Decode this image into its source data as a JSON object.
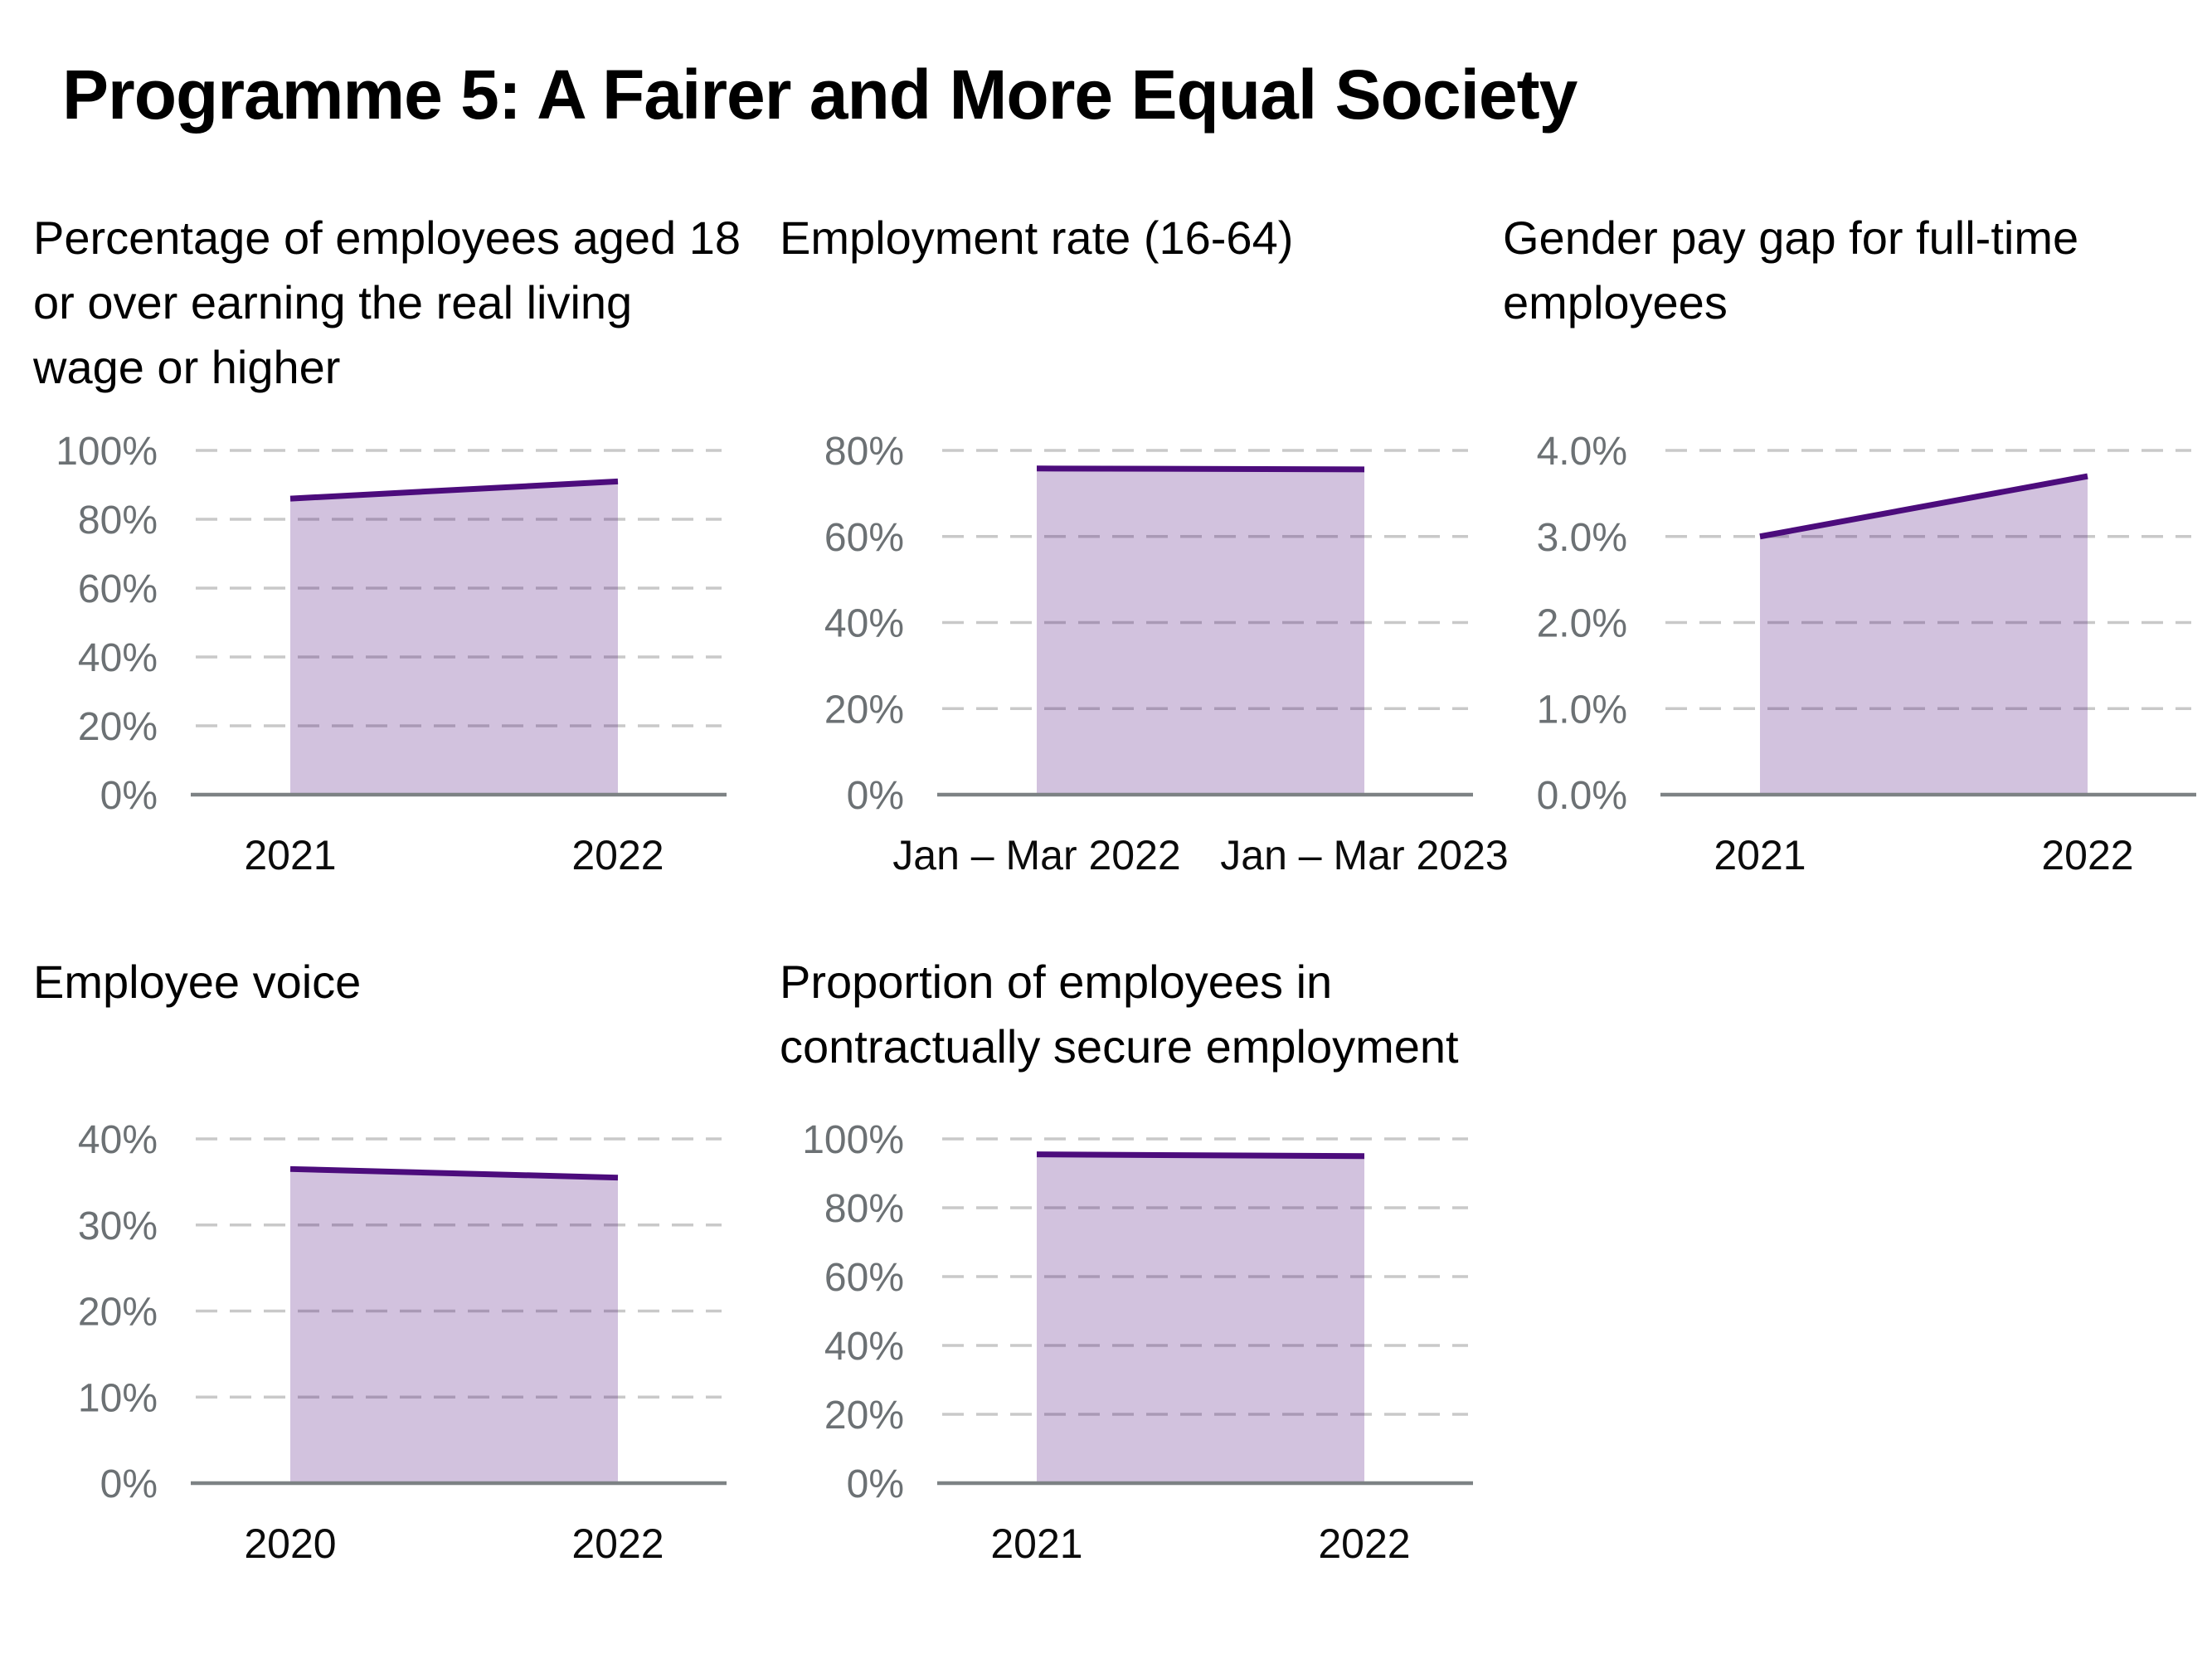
{
  "page": {
    "title": "Programme 5: A Fairer and More Equal Society",
    "background": "#ffffff"
  },
  "colors": {
    "title_text": "#000000",
    "chart_title_text": "#000000",
    "tick_label": "#6c7174",
    "x_label": "#0b0b0b",
    "gridline": "#c9c9c9",
    "baseline": "#7d8284",
    "trend_line": "#4c0c7c",
    "area_fill": "rgba(77,13,125,0.25)"
  },
  "chart_data": [
    {
      "type": "area",
      "title": "Percentage of employees aged 18\nor over earning the real living\nwage or higher",
      "x_labels": [
        "2021",
        "2022"
      ],
      "values": [
        86,
        91
      ],
      "y_max": 100,
      "y_ticks": [
        "100%",
        "80%",
        "60%",
        "40%",
        "20%",
        "0%"
      ],
      "grid": "dashed-horizontal",
      "legend": "none"
    },
    {
      "type": "area",
      "title": "Employment rate (16-64)",
      "x_labels": [
        "Jan – Mar 2022",
        "Jan – Mar 2023"
      ],
      "values": [
        75.8,
        75.6
      ],
      "y_max": 80,
      "y_ticks": [
        "80%",
        "60%",
        "40%",
        "20%",
        "0%"
      ],
      "grid": "dashed-horizontal",
      "legend": "none"
    },
    {
      "type": "area",
      "title": "Gender pay gap for full-time\nemployees",
      "x_labels": [
        "2021",
        "2022"
      ],
      "values": [
        3.0,
        3.7
      ],
      "y_max": 4.0,
      "y_ticks": [
        "4.0%",
        "3.0%",
        "2.0%",
        "1.0%",
        "0.0%"
      ],
      "grid": "dashed-horizontal",
      "legend": "none"
    },
    {
      "type": "area",
      "title": "Employee voice",
      "x_labels": [
        "2020",
        "2022"
      ],
      "values": [
        36.5,
        35.5
      ],
      "y_max": 40,
      "y_ticks": [
        "40%",
        "30%",
        "20%",
        "10%",
        "0%"
      ],
      "grid": "dashed-horizontal",
      "legend": "none"
    },
    {
      "type": "area",
      "title": "Proportion of employees in\ncontractually secure employment",
      "x_labels": [
        "2021",
        "2022"
      ],
      "values": [
        95.5,
        95.0
      ],
      "y_max": 100,
      "y_ticks": [
        "100%",
        "80%",
        "60%",
        "40%",
        "20%",
        "0%"
      ],
      "grid": "dashed-horizontal",
      "legend": "none"
    }
  ]
}
